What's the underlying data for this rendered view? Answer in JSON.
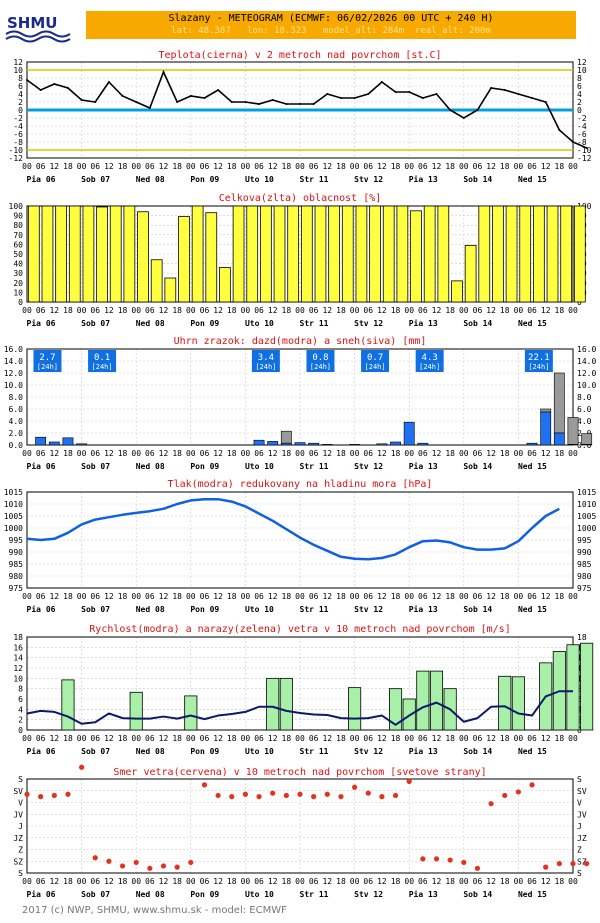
{
  "header": {
    "logo_text": "SHMU",
    "title": "Slazany - METEOGRAM (ECMWF: 06/02/2026 00 UTC + 240 H)",
    "subtitle": "lat: 48.387   lon: 18.323   model_alt: 284m  real_alt: 200m"
  },
  "footer": {
    "text": "2017 (c) NWP, SHMU, www.shmu.sk - model: ECMWF"
  },
  "x_axis": {
    "hour_labels": [
      "00",
      "06",
      "12",
      "18"
    ],
    "day_labels": [
      "Pia 06",
      "Sob 07",
      "Ned 08",
      "Pon 09",
      "Uto 10",
      "Str 11",
      "Stv 12",
      "Pia 13",
      "Sob 14",
      "Ned 15"
    ]
  },
  "chart_data": [
    {
      "type": "line",
      "title": "Teplota(cierna) v 2 metroch nad povrchom [st.C]",
      "ylim": [
        -12,
        12
      ],
      "yticks": [
        12,
        10,
        8,
        6,
        4,
        2,
        0,
        -2,
        -4,
        -6,
        -8,
        -10,
        -12
      ],
      "reference_lines": [
        {
          "value": 10,
          "color": "#d4c800"
        },
        {
          "value": 0,
          "color": "#00a0dc"
        },
        {
          "value": -10,
          "color": "#d4c800"
        }
      ],
      "series": [
        {
          "color": "#000000",
          "values": [
            7.5,
            5,
            6.5,
            5.5,
            2.5,
            2,
            7,
            3.5,
            2,
            0.5,
            9.5,
            2,
            3.5,
            3,
            5,
            2,
            2,
            1.5,
            2.5,
            1.5,
            1.5,
            1.5,
            4,
            3,
            3,
            4,
            7,
            4.5,
            4.5,
            3,
            4,
            0,
            -2,
            0,
            5.5,
            5,
            4,
            3,
            2,
            -5,
            -8,
            -9.5
          ]
        }
      ]
    },
    {
      "type": "bar",
      "title": "Celkova(zlta) oblacnost [%]",
      "ylim": [
        0,
        100
      ],
      "yticks": [
        100,
        90,
        80,
        70,
        60,
        50,
        40,
        30,
        20,
        10,
        0
      ],
      "series": [
        {
          "color": "#ffff40",
          "values": [
            100,
            100,
            100,
            100,
            100,
            99,
            100,
            100,
            94,
            44,
            25,
            89,
            100,
            93,
            36,
            100,
            100,
            100,
            100,
            100,
            100,
            100,
            100,
            100,
            100,
            100,
            100,
            100,
            95,
            100,
            100,
            22,
            59,
            100,
            100,
            100,
            100,
            100,
            100,
            100,
            100
          ]
        }
      ]
    },
    {
      "type": "bar",
      "title": "Uhrn zrazok: dazd(modra) a sneh(siva) [mm]",
      "ylim": [
        0,
        16
      ],
      "yticks": [
        16.0,
        14.0,
        12.0,
        10.0,
        8.0,
        6.0,
        4.0,
        2.0,
        0.0
      ],
      "daily_totals": [
        {
          "slot": 1,
          "value": "2.7",
          "unit": "[24h]"
        },
        {
          "slot": 5,
          "value": "0.1",
          "unit": "[24h]"
        },
        {
          "slot": 17,
          "value": "3.4",
          "unit": "[24h]"
        },
        {
          "slot": 21,
          "value": "0.8",
          "unit": "[24h]"
        },
        {
          "slot": 25,
          "value": "0.7",
          "unit": "[24h]"
        },
        {
          "slot": 29,
          "value": "4.3",
          "unit": "[24h]"
        },
        {
          "slot": 37,
          "value": "22.1",
          "unit": "[24h]"
        }
      ],
      "series": [
        {
          "name": "dazd",
          "color": "#2070f0",
          "values": [
            0,
            1.3,
            0.5,
            1.2,
            0.2,
            0,
            0,
            0,
            0,
            0,
            0,
            0,
            0,
            0,
            0,
            0,
            0,
            0.8,
            0.6,
            0.3,
            0.4,
            0.3,
            0.1,
            0,
            0.1,
            0,
            0.2,
            0.5,
            3.8,
            0.3,
            0,
            0,
            0,
            0,
            0,
            0,
            0,
            0.3,
            5.5,
            2,
            0.1,
            0.1
          ]
        },
        {
          "name": "sneh",
          "color": "#999999",
          "values": [
            0,
            0,
            0,
            0,
            0,
            0,
            0,
            0,
            0,
            0,
            0,
            0,
            0,
            0,
            0,
            0,
            0,
            0,
            0,
            2.0,
            0,
            0,
            0,
            0,
            0,
            0,
            0,
            0,
            0,
            0,
            0,
            0,
            0,
            0,
            0,
            0,
            0,
            0,
            0.5,
            10,
            4.5,
            1.8
          ]
        }
      ]
    },
    {
      "type": "line",
      "title": "Tlak(modra) redukovany na hladinu mora [hPa]",
      "ylim": [
        975,
        1015
      ],
      "yticks": [
        1015,
        1010,
        1005,
        1000,
        995,
        990,
        985,
        980,
        975
      ],
      "series": [
        {
          "color": "#1060e0",
          "values": [
            995.5,
            995,
            995.5,
            998,
            1001.5,
            1003.5,
            1004.5,
            1005.5,
            1006.3,
            1007,
            1008,
            1010,
            1011.5,
            1012,
            1012,
            1011,
            1009,
            1006,
            1003,
            999.5,
            996,
            993,
            990.5,
            988,
            987.2,
            987,
            987.5,
            989,
            992,
            994.5,
            994.8,
            994,
            992,
            991,
            991,
            991.5,
            994.5,
            1000,
            1005,
            1008
          ]
        }
      ]
    },
    {
      "type": "bar",
      "title": "Rychlost(modra) a narazy(zelena) vetra v 10 metroch nad povrchom [m/s]",
      "ylim": [
        0,
        18
      ],
      "yticks": [
        18,
        16,
        14,
        12,
        10,
        8,
        6,
        4,
        2,
        0
      ],
      "series": [
        {
          "name": "narazy",
          "color": "#a8f0a8",
          "values": [
            0,
            0,
            0,
            9.7,
            0,
            0,
            0,
            0,
            7.3,
            0,
            0,
            0,
            6.6,
            0,
            0,
            0,
            0,
            0,
            10,
            10,
            0,
            0,
            0,
            0,
            8.2,
            0,
            0,
            8,
            6,
            11.4,
            11.4,
            8,
            0,
            0,
            0,
            10.4,
            10.3,
            0,
            13,
            15.2,
            16.5,
            16.8
          ]
        },
        {
          "name": "rychlost",
          "color": "#0a1a6a",
          "values": [
            3.2,
            3.7,
            3.5,
            2.6,
            1.2,
            1.5,
            3.2,
            2.3,
            2.2,
            2.2,
            2.6,
            2.2,
            2.8,
            2.1,
            2.8,
            3.1,
            3.5,
            4.5,
            4.5,
            3.7,
            3.3,
            3.0,
            2.9,
            2.3,
            2.2,
            2.3,
            2.8,
            1.0,
            2.8,
            4.4,
            5.3,
            4.0,
            1.6,
            2.3,
            4.5,
            4.6,
            3.2,
            2.8,
            6.5,
            7.5,
            7.5
          ]
        }
      ]
    },
    {
      "type": "scatter",
      "title": "Smer vetra(cervena) v 10 metroch nad povrchom [svetove strany]",
      "yticks": [
        "S",
        "SV",
        "V",
        "JV",
        "J",
        "JZ",
        "Z",
        "SZ",
        "S"
      ],
      "series": [
        {
          "color": "#e83020",
          "values": [
            6.7,
            6.5,
            6.6,
            6.7,
            9,
            1.3,
            1,
            0.6,
            0.9,
            0.4,
            0.6,
            0.5,
            0.9,
            7.5,
            6.6,
            6.5,
            6.7,
            6.5,
            6.8,
            6.6,
            6.7,
            6.5,
            6.7,
            6.5,
            7.3,
            6.8,
            6.5,
            6.6,
            7.8,
            1.2,
            1.2,
            1.1,
            0.9,
            0.4,
            5.9,
            6.6,
            6.9,
            7.5,
            0.5,
            0.8,
            0.8,
            0.8
          ]
        }
      ]
    }
  ]
}
